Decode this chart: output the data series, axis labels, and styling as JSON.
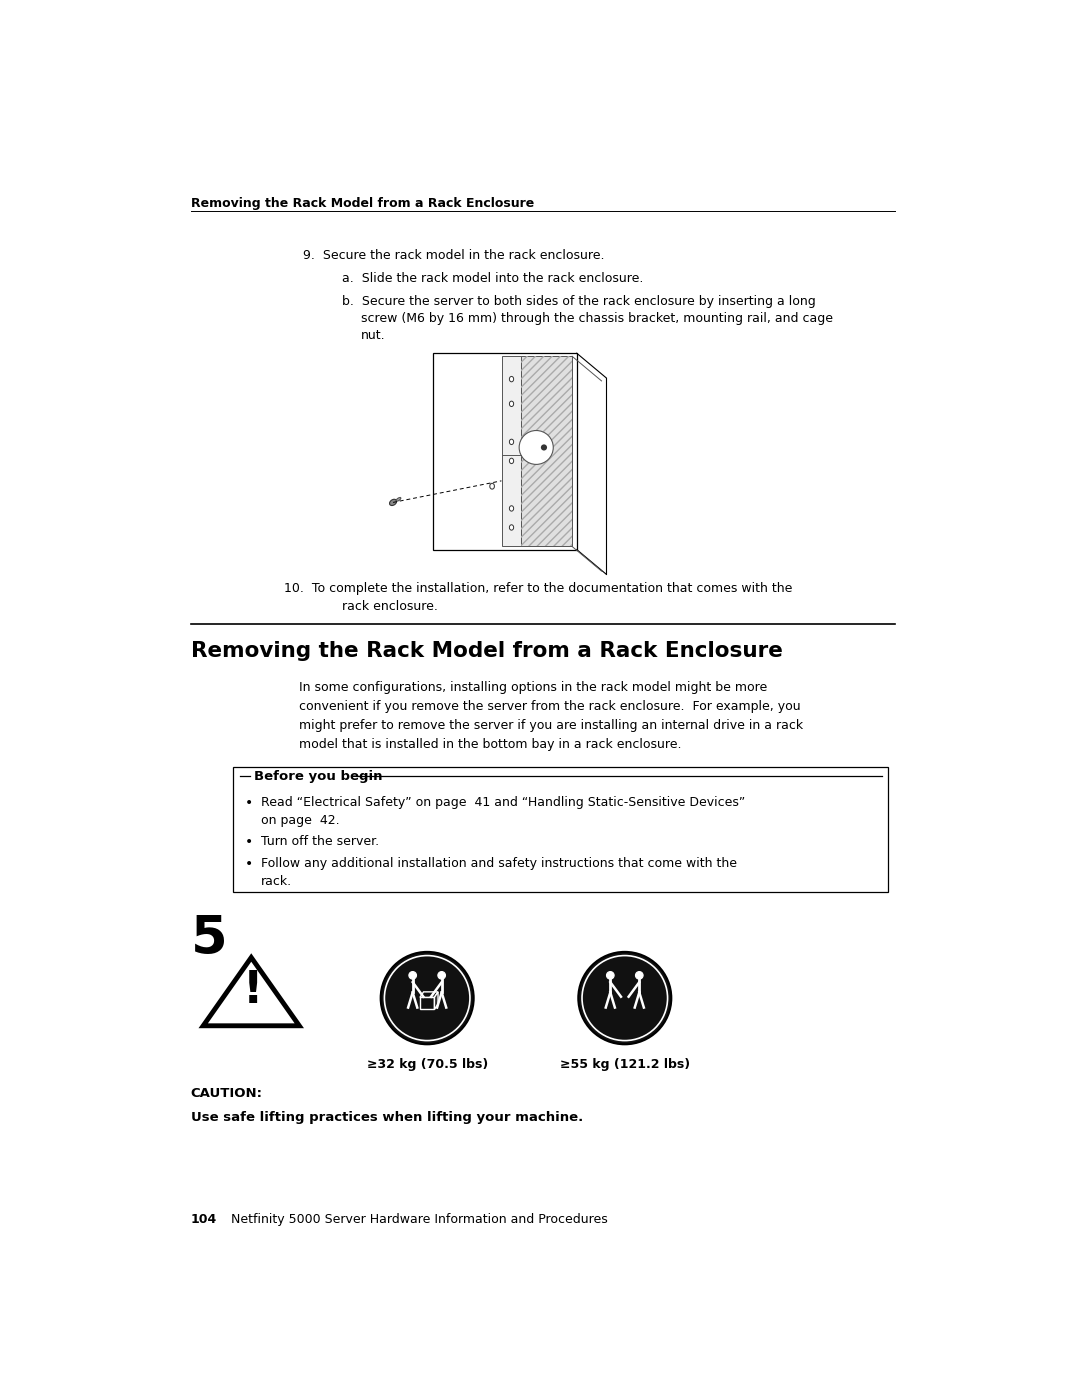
{
  "bg_color": "#ffffff",
  "page_width": 10.8,
  "page_height": 13.97,
  "top_title": "Removing the Rack Model from a Rack Enclosure",
  "step9": "9.  Secure the rack model in the rack enclosure.",
  "step9a": "a.  Slide the rack model into the rack enclosure.",
  "step9b_line1": "b.  Secure the server to both sides of the rack enclosure by inserting a long",
  "step9b_line2": "screw (M6 by 16 mm) through the chassis bracket, mounting rail, and cage",
  "step9b_line3": "nut.",
  "step10_line1": "10.  To complete the installation, refer to the documentation that comes with the",
  "step10_line2": "rack enclosure.",
  "section_title": "Removing the Rack Model from a Rack Enclosure",
  "section_para_line1": "In some configurations, installing options in the rack model might be more",
  "section_para_line2": "convenient if you remove the server from the rack enclosure.  For example, you",
  "section_para_line3": "might prefer to remove the server if you are installing an internal drive in a rack",
  "section_para_line4": "model that is installed in the bottom bay in a rack enclosure.",
  "before_begin_label": "Before you begin",
  "bullet1_line1": "Read “Electrical Safety” on page  41 and “Handling Static-Sensitive Devices”",
  "bullet1_line2": "on page  42.",
  "bullet2": "Turn off the server.",
  "bullet3_line1": "Follow any additional installation and safety instructions that come with the",
  "bullet3_line2": "rack.",
  "caution_number": "5",
  "caution_label": "CAUTION:",
  "caution_text": "Use safe lifting practices when lifting your machine.",
  "weight1_label": "≥32 kg (70.5 lbs)",
  "weight2_label": "≥55 kg (121.2 lbs)",
  "footer_page": "104",
  "footer_text": "Netfinity 5000 Server Hardware Information and Procedures"
}
